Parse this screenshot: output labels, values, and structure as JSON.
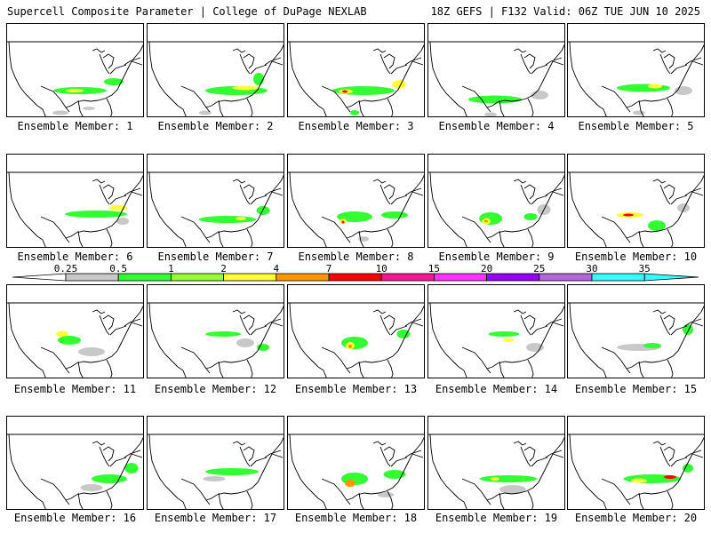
{
  "header": {
    "title_left": "Supercell Composite Parameter | College of DuPage NEXLAB",
    "title_right": "18Z GEFS | F132 Valid: 06Z TUE JUN 10 2025"
  },
  "colorbar": {
    "ticks": [
      "0.25",
      "0.5",
      "1",
      "2",
      "4",
      "7",
      "10",
      "15",
      "20",
      "25",
      "30",
      "35"
    ],
    "colors": [
      "#ffffff",
      "#c8c8c8",
      "#32ff32",
      "#96ff32",
      "#ffff32",
      "#ff9600",
      "#ff0000",
      "#ff1493",
      "#ff32ff",
      "#9600ff",
      "#b464dc",
      "#32ffff"
    ]
  },
  "panels": [
    {
      "label": "Ensemble Member: 1",
      "blobs": [
        [
          82,
          75,
          60,
          8,
          "#32ff32"
        ],
        [
          76,
          75,
          20,
          4,
          "#ffff32"
        ],
        [
          120,
          65,
          22,
          8,
          "#32ff32"
        ],
        [
          60,
          100,
          18,
          5,
          "#c8c8c8"
        ],
        [
          92,
          95,
          14,
          4,
          "#c8c8c8"
        ]
      ]
    },
    {
      "label": "Ensemble Member: 2",
      "blobs": [
        [
          100,
          75,
          70,
          10,
          "#32ff32"
        ],
        [
          110,
          72,
          30,
          5,
          "#ffff32"
        ],
        [
          125,
          62,
          12,
          14,
          "#32ff32"
        ],
        [
          65,
          100,
          14,
          5,
          "#c8c8c8"
        ]
      ]
    },
    {
      "label": "Ensemble Member: 3",
      "blobs": [
        [
          85,
          75,
          70,
          10,
          "#32ff32"
        ],
        [
          65,
          76,
          16,
          5,
          "#ffff32"
        ],
        [
          64,
          76,
          6,
          3,
          "#ff0000"
        ],
        [
          125,
          68,
          15,
          10,
          "#ffff32"
        ],
        [
          75,
          100,
          10,
          6,
          "#32ff32"
        ]
      ]
    },
    {
      "label": "Ensemble Member: 4",
      "blobs": [
        [
          75,
          85,
          60,
          9,
          "#32ff32"
        ],
        [
          125,
          80,
          20,
          10,
          "#c8c8c8"
        ],
        [
          70,
          102,
          14,
          5,
          "#c8c8c8"
        ]
      ]
    },
    {
      "label": "Ensemble Member: 5",
      "blobs": [
        [
          85,
          72,
          60,
          9,
          "#32ff32"
        ],
        [
          98,
          70,
          16,
          5,
          "#ffff32"
        ],
        [
          130,
          75,
          20,
          10,
          "#c8c8c8"
        ],
        [
          80,
          100,
          14,
          5,
          "#c8c8c8"
        ]
      ]
    },
    {
      "label": "Ensemble Member: 6",
      "blobs": [
        [
          100,
          67,
          70,
          8,
          "#32ff32"
        ],
        [
          125,
          60,
          20,
          6,
          "#ffff32"
        ],
        [
          130,
          75,
          14,
          8,
          "#c8c8c8"
        ]
      ]
    },
    {
      "label": "Ensemble Member: 7",
      "blobs": [
        [
          90,
          73,
          65,
          8,
          "#32ff32"
        ],
        [
          105,
          72,
          12,
          4,
          "#ffff32"
        ],
        [
          130,
          63,
          15,
          10,
          "#32ff32"
        ]
      ]
    },
    {
      "label": "Ensemble Member: 8",
      "blobs": [
        [
          75,
          70,
          40,
          12,
          "#32ff32"
        ],
        [
          62,
          75,
          8,
          6,
          "#ffff32"
        ],
        [
          62,
          76,
          3,
          3,
          "#ff0000"
        ],
        [
          120,
          68,
          30,
          8,
          "#32ff32"
        ],
        [
          85,
          95,
          12,
          6,
          "#c8c8c8"
        ]
      ]
    },
    {
      "label": "Ensemble Member: 9",
      "blobs": [
        [
          70,
          72,
          26,
          14,
          "#32ff32"
        ],
        [
          65,
          75,
          10,
          7,
          "#ffff32"
        ],
        [
          65,
          75,
          4,
          3,
          "#ff9600"
        ],
        [
          130,
          62,
          15,
          12,
          "#c8c8c8"
        ],
        [
          115,
          70,
          15,
          8,
          "#32ff32"
        ]
      ]
    },
    {
      "label": "Ensemble Member: 10",
      "blobs": [
        [
          70,
          68,
          30,
          6,
          "#ffff32"
        ],
        [
          68,
          68,
          12,
          3,
          "#ff0000"
        ],
        [
          100,
          80,
          20,
          12,
          "#32ff32"
        ],
        [
          130,
          60,
          14,
          10,
          "#c8c8c8"
        ]
      ]
    },
    {
      "label": "Ensemble Member: 11",
      "blobs": [
        [
          62,
          55,
          14,
          7,
          "#ffff32"
        ],
        [
          70,
          62,
          26,
          10,
          "#32ff32"
        ],
        [
          95,
          75,
          30,
          10,
          "#c8c8c8"
        ]
      ]
    },
    {
      "label": "Ensemble Member: 12",
      "blobs": [
        [
          85,
          55,
          40,
          6,
          "#32ff32"
        ],
        [
          110,
          65,
          20,
          10,
          "#c8c8c8"
        ],
        [
          130,
          70,
          14,
          8,
          "#32ff32"
        ]
      ]
    },
    {
      "label": "Ensemble Member: 13",
      "blobs": [
        [
          75,
          65,
          30,
          14,
          "#32ff32"
        ],
        [
          70,
          68,
          10,
          8,
          "#ffff32"
        ],
        [
          70,
          69,
          4,
          4,
          "#ff9600"
        ],
        [
          130,
          55,
          15,
          10,
          "#32ff32"
        ]
      ]
    },
    {
      "label": "Ensemble Member: 14",
      "blobs": [
        [
          85,
          55,
          35,
          6,
          "#32ff32"
        ],
        [
          90,
          62,
          12,
          4,
          "#ffff32"
        ],
        [
          120,
          70,
          20,
          10,
          "#c8c8c8"
        ]
      ]
    },
    {
      "label": "Ensemble Member: 15",
      "blobs": [
        [
          80,
          70,
          50,
          8,
          "#c8c8c8"
        ],
        [
          95,
          68,
          20,
          6,
          "#32ff32"
        ],
        [
          135,
          50,
          12,
          12,
          "#32ff32"
        ]
      ]
    },
    {
      "label": "Ensemble Member: 16",
      "blobs": [
        [
          115,
          70,
          40,
          10,
          "#32ff32"
        ],
        [
          140,
          58,
          15,
          12,
          "#32ff32"
        ],
        [
          95,
          80,
          25,
          8,
          "#c8c8c8"
        ]
      ]
    },
    {
      "label": "Ensemble Member: 17",
      "blobs": [
        [
          95,
          62,
          60,
          8,
          "#32ff32"
        ],
        [
          75,
          70,
          25,
          6,
          "#c8c8c8"
        ]
      ]
    },
    {
      "label": "Ensemble Member: 18",
      "blobs": [
        [
          75,
          70,
          30,
          14,
          "#32ff32"
        ],
        [
          70,
          75,
          12,
          8,
          "#ff9600"
        ],
        [
          120,
          65,
          25,
          10,
          "#32ff32"
        ],
        [
          110,
          88,
          18,
          6,
          "#c8c8c8"
        ]
      ]
    },
    {
      "label": "Ensemble Member: 19",
      "blobs": [
        [
          90,
          70,
          65,
          8,
          "#32ff32"
        ],
        [
          95,
          82,
          30,
          10,
          "#c8c8c8"
        ],
        [
          75,
          70,
          10,
          4,
          "#ffff32"
        ]
      ]
    },
    {
      "label": "Ensemble Member: 20",
      "blobs": [
        [
          95,
          70,
          65,
          10,
          "#32ff32"
        ],
        [
          80,
          72,
          18,
          5,
          "#ffff32"
        ],
        [
          115,
          68,
          14,
          4,
          "#ff0000"
        ],
        [
          135,
          58,
          12,
          10,
          "#32ff32"
        ]
      ]
    }
  ]
}
